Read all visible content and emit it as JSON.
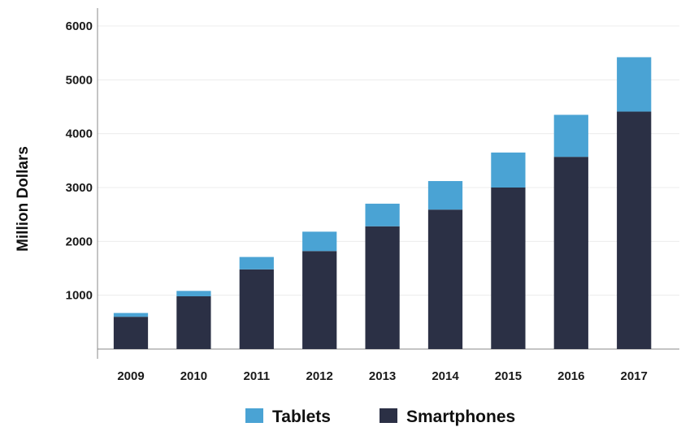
{
  "chart_data": {
    "type": "bar",
    "stacked": true,
    "title": "",
    "xlabel": "",
    "ylabel": "Million Dollars",
    "ylim": [
      0,
      6000
    ],
    "yticks": [
      1000,
      2000,
      3000,
      4000,
      5000,
      6000
    ],
    "grid": true,
    "legend_position": "bottom",
    "categories": [
      "2009",
      "2010",
      "2011",
      "2012",
      "2013",
      "2014",
      "2015",
      "2016",
      "2017"
    ],
    "series": [
      {
        "name": "Smartphones",
        "color": "#2b3045",
        "values": [
          600,
          980,
          1480,
          1820,
          2280,
          2590,
          3000,
          3570,
          4410
        ]
      },
      {
        "name": "Tablets",
        "color": "#4aa3d4",
        "values": [
          70,
          100,
          230,
          360,
          420,
          530,
          650,
          780,
          1010
        ]
      }
    ],
    "legend": [
      "Tablets",
      "Smartphones"
    ]
  }
}
